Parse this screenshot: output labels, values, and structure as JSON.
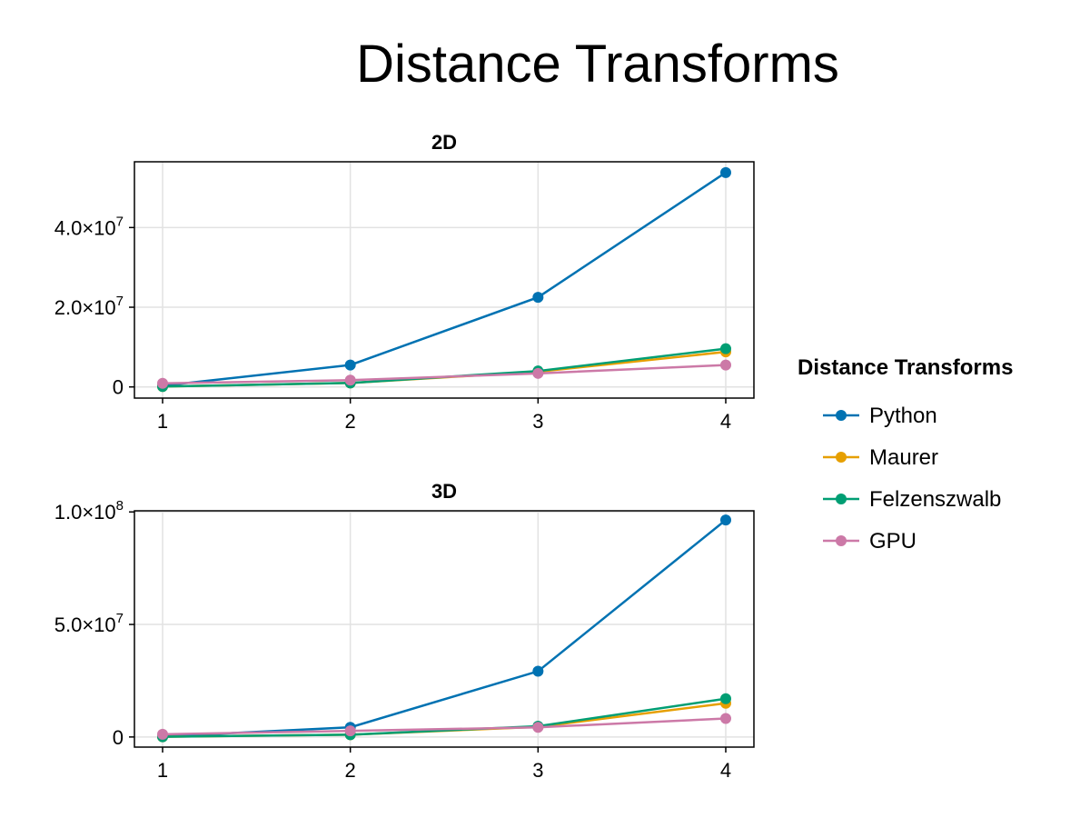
{
  "figure": {
    "title": "Distance Transforms"
  },
  "legend": {
    "title": "Distance Transforms",
    "placement": "right"
  },
  "chart_data": [
    {
      "type": "line",
      "title": "2D",
      "x": [
        1,
        2,
        3,
        4
      ],
      "xticks": [
        "1",
        "2",
        "3",
        "4"
      ],
      "xlim": [
        0.85,
        4.15
      ],
      "ylim": [
        -2800000,
        56500000
      ],
      "yticks": [
        {
          "value": 0,
          "mantissa": "0",
          "exp": ""
        },
        {
          "value": 20000000,
          "mantissa": "2.0×10",
          "exp": "7"
        },
        {
          "value": 40000000,
          "mantissa": "4.0×10",
          "exp": "7"
        }
      ],
      "grid": true,
      "series": [
        {
          "name": "Python",
          "color": "#0072b2",
          "values": [
            300000,
            5500000,
            22500000,
            53800000
          ]
        },
        {
          "name": "Maurer",
          "color": "#e69f00",
          "values": [
            100000,
            1000000,
            3800000,
            8800000
          ]
        },
        {
          "name": "Felzenszwalb",
          "color": "#009e73",
          "values": [
            100000,
            1000000,
            4000000,
            9600000
          ]
        },
        {
          "name": "GPU",
          "color": "#cc79a7",
          "values": [
            900000,
            1700000,
            3400000,
            5500000
          ]
        }
      ]
    },
    {
      "type": "line",
      "title": "3D",
      "x": [
        1,
        2,
        3,
        4
      ],
      "xticks": [
        "1",
        "2",
        "3",
        "4"
      ],
      "xlim": [
        0.85,
        4.15
      ],
      "ylim": [
        -4500000,
        100500000
      ],
      "yticks": [
        {
          "value": 0,
          "mantissa": "0",
          "exp": ""
        },
        {
          "value": 50000000,
          "mantissa": "5.0×10",
          "exp": "7"
        },
        {
          "value": 100000000,
          "mantissa": "1.0×10",
          "exp": "8"
        }
      ],
      "grid": true,
      "series": [
        {
          "name": "Python",
          "color": "#0072b2",
          "values": [
            200000,
            4300000,
            29200000,
            96400000
          ]
        },
        {
          "name": "Maurer",
          "color": "#e69f00",
          "values": [
            100000,
            1000000,
            4500000,
            15000000
          ]
        },
        {
          "name": "Felzenszwalb",
          "color": "#009e73",
          "values": [
            100000,
            1000000,
            4800000,
            17000000
          ]
        },
        {
          "name": "GPU",
          "color": "#cc79a7",
          "values": [
            1200000,
            2700000,
            4300000,
            8200000
          ]
        }
      ]
    }
  ]
}
